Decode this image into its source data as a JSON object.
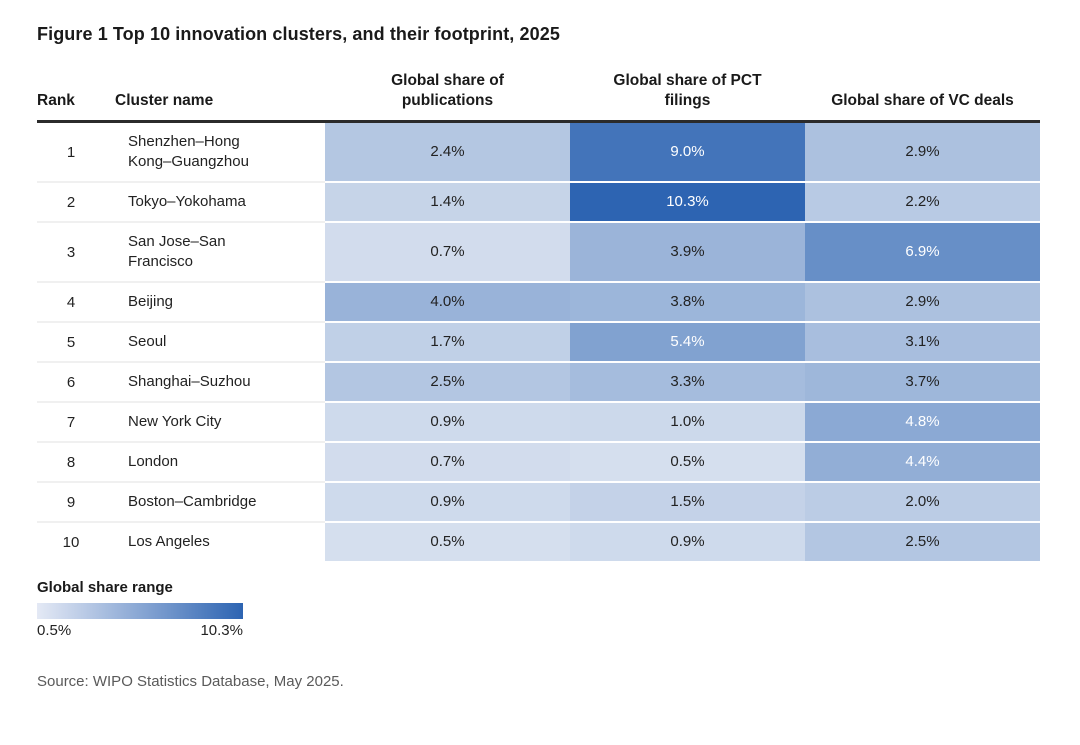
{
  "title": "Figure 1 Top 10 innovation clusters, and their footprint, 2025",
  "table": {
    "columns": [
      "Rank",
      "Cluster name",
      "Global share of publications",
      "Global share of PCT filings",
      "Global share of VC deals"
    ],
    "rows": [
      {
        "rank": "1",
        "name": "Shenzhen–Hong Kong–Guangzhou",
        "publications": 2.4,
        "pct_filings": 9.0,
        "vc_deals": 2.9
      },
      {
        "rank": "2",
        "name": "Tokyo–Yokohama",
        "publications": 1.4,
        "pct_filings": 10.3,
        "vc_deals": 2.2
      },
      {
        "rank": "3",
        "name": "San Jose–San Francisco",
        "publications": 0.7,
        "pct_filings": 3.9,
        "vc_deals": 6.9
      },
      {
        "rank": "4",
        "name": "Beijing",
        "publications": 4.0,
        "pct_filings": 3.8,
        "vc_deals": 2.9
      },
      {
        "rank": "5",
        "name": "Seoul",
        "publications": 1.7,
        "pct_filings": 5.4,
        "vc_deals": 3.1
      },
      {
        "rank": "6",
        "name": "Shanghai–Suzhou",
        "publications": 2.5,
        "pct_filings": 3.3,
        "vc_deals": 3.7
      },
      {
        "rank": "7",
        "name": "New York City",
        "publications": 0.9,
        "pct_filings": 1.0,
        "vc_deals": 4.8
      },
      {
        "rank": "8",
        "name": "London",
        "publications": 0.7,
        "pct_filings": 0.5,
        "vc_deals": 4.4
      },
      {
        "rank": "9",
        "name": "Boston–Cambridge",
        "publications": 0.9,
        "pct_filings": 1.5,
        "vc_deals": 2.0
      },
      {
        "rank": "10",
        "name": "Los Angeles",
        "publications": 0.5,
        "pct_filings": 0.9,
        "vc_deals": 2.5
      }
    ]
  },
  "legend": {
    "title": "Global share range",
    "min_label": "0.5%",
    "max_label": "10.3%"
  },
  "source": "Source: WIPO Statistics Database, May 2025.",
  "colors": {
    "scale_min": "#d5dfee",
    "scale_max": "#2d64b2",
    "legend_gradient_left": "#e4e9f5",
    "header_rule": "#2b2b2b",
    "dark_text": "#222222",
    "light_text": "#ffffff"
  },
  "chart_data": {
    "type": "heatmap",
    "title": "Figure 1 Top 10 innovation clusters, and their footprint, 2025",
    "unit": "%",
    "categories": [
      "Shenzhen–Hong Kong–Guangzhou",
      "Tokyo–Yokohama",
      "San Jose–San Francisco",
      "Beijing",
      "Seoul",
      "Shanghai–Suzhou",
      "New York City",
      "London",
      "Boston–Cambridge",
      "Los Angeles"
    ],
    "ranks": [
      1,
      2,
      3,
      4,
      5,
      6,
      7,
      8,
      9,
      10
    ],
    "series": [
      {
        "name": "Global share of publications",
        "values": [
          2.4,
          1.4,
          0.7,
          4.0,
          1.7,
          2.5,
          0.9,
          0.7,
          0.9,
          0.5
        ]
      },
      {
        "name": "Global share of PCT filings",
        "values": [
          9.0,
          10.3,
          3.9,
          3.8,
          5.4,
          3.3,
          1.0,
          0.5,
          1.5,
          0.9
        ]
      },
      {
        "name": "Global share of VC deals",
        "values": [
          2.9,
          2.2,
          6.9,
          2.9,
          3.1,
          3.7,
          4.8,
          4.4,
          2.0,
          2.5
        ]
      }
    ],
    "color_range": {
      "min": 0.5,
      "max": 10.3,
      "min_color": "#d5dfee",
      "max_color": "#2d64b2"
    },
    "white_text_threshold": 4.2,
    "legend": {
      "title": "Global share range",
      "min_label": "0.5%",
      "max_label": "10.3%",
      "position": "bottom-left"
    },
    "source": "Source: WIPO Statistics Database, May 2025."
  }
}
